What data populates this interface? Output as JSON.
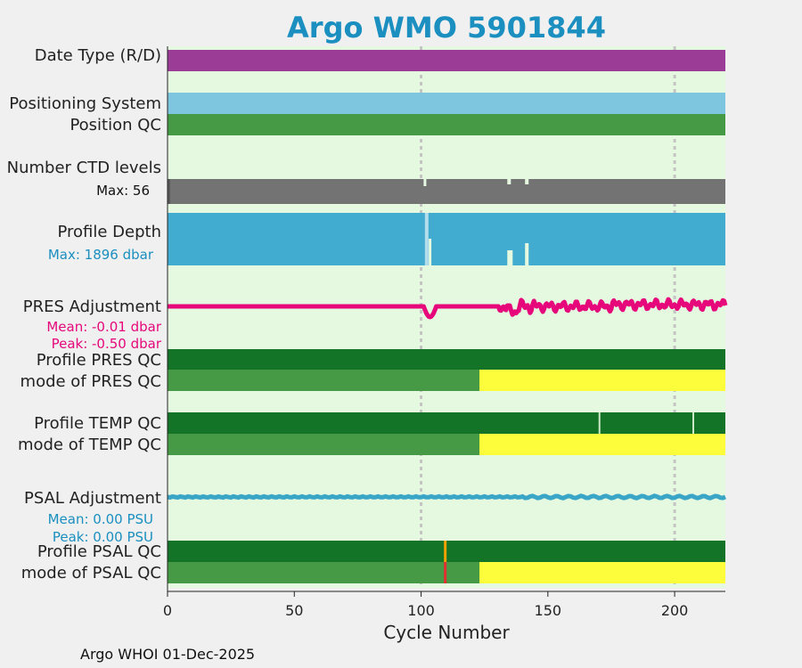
{
  "title": "Argo WMO 5901844",
  "colors": {
    "background": "#e5f8e0",
    "title": "#1a8fc0",
    "date_type": "#9b3c96",
    "positioning": "#7ec6df",
    "qc_good": "#469a46",
    "qc_dark": "#137427",
    "qc_yellow": "#fdfd3c",
    "ctd": "#737373",
    "depth": "#42abd0",
    "pres": "#e6077a",
    "psal": "#3aa6c7",
    "orange": "#f0a000",
    "red": "#e03030"
  },
  "rows": {
    "date_type": "Date Type (R/D)",
    "positioning": "Positioning System",
    "position_qc": "Position QC",
    "ctd_levels": "Number CTD levels",
    "ctd_max": "Max: 56",
    "profile_depth": "Profile Depth",
    "depth_max": "Max: 1896 dbar",
    "pres_adj": "PRES Adjustment",
    "pres_mean": "Mean: -0.01 dbar",
    "pres_peak": "Peak: -0.50 dbar",
    "pres_qc": "Profile PRES QC",
    "pres_mode": "mode of PRES QC",
    "temp_qc": "Profile TEMP QC",
    "temp_mode": "mode of TEMP QC",
    "psal_adj": "PSAL Adjustment",
    "psal_mean": "Mean: 0.00 PSU",
    "psal_peak": "Peak: 0.00 PSU",
    "psal_qc": "Profile PSAL QC",
    "psal_mode": "mode of PSAL QC"
  },
  "footer": "Argo WHOI 01-Dec-2025",
  "chart_data": {
    "type": "bar",
    "title": "Argo WMO 5901844",
    "xlabel": "Cycle Number",
    "xlim": [
      0,
      220
    ],
    "xticks": [
      0,
      50,
      100,
      150,
      200
    ],
    "grid": "vertical dotted at 100 and 200",
    "mode_qc_switch_cycle": 123,
    "temp_qc_gaps": [
      170,
      207
    ],
    "psal_qc_flag_cycle": 109,
    "ctd_levels_max": 56,
    "profile_depth_max_dbar": 1896,
    "pres_adjustment": {
      "mean": -0.01,
      "peak": -0.5,
      "unit": "dbar"
    },
    "psal_adjustment": {
      "mean": 0.0,
      "peak": 0.0,
      "unit": "PSU"
    }
  }
}
